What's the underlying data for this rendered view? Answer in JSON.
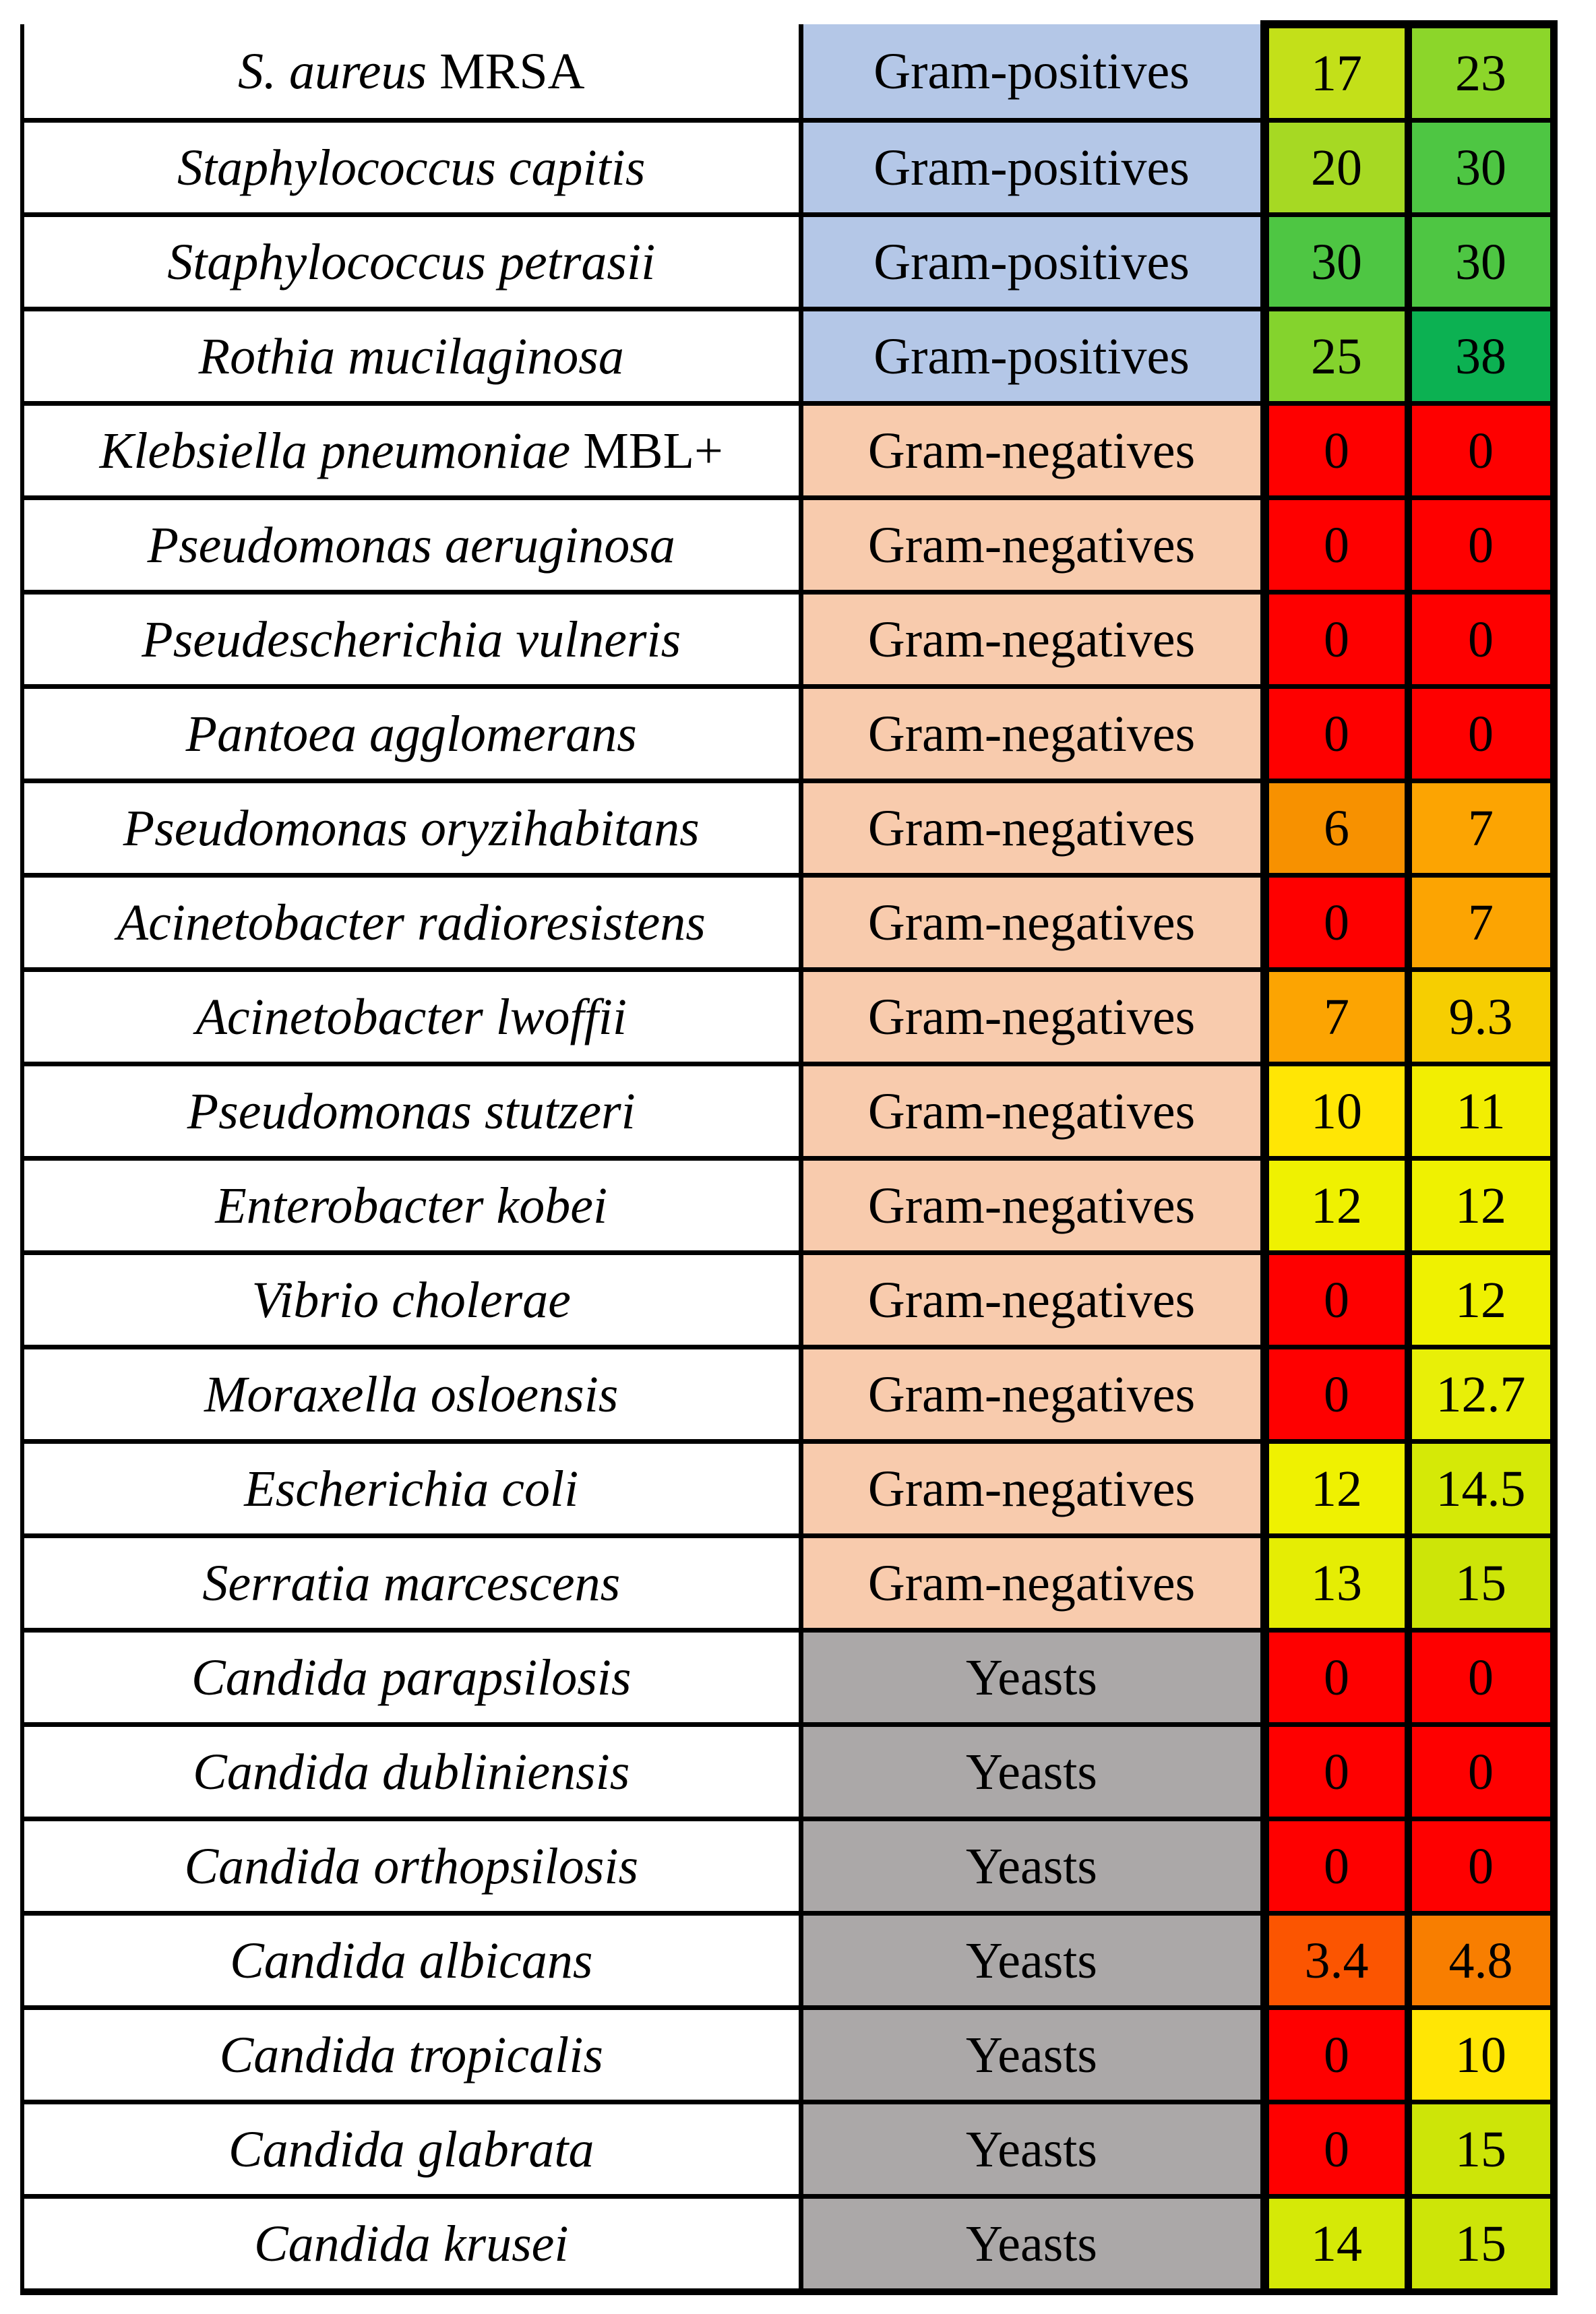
{
  "category_colors": {
    "gram_positives": "#B4C7E7",
    "gram_negatives": "#F8CBAD",
    "yeasts": "#ABA8A8"
  },
  "value_scale_colors": {
    "zero_red": "#FE0000",
    "mid_yellow": "#EFF101",
    "max_green": "#0CB152"
  },
  "rows": [
    {
      "species_italic": "S. aureus",
      "species_roman": " MRSA",
      "category": "Gram-positives",
      "cat_color": "#B4C7E7",
      "v1": "17",
      "v1_color": "#C3E019",
      "v2": "23",
      "v2_color": "#8CD62A"
    },
    {
      "species_italic": "Staphylococcus capitis",
      "species_roman": "",
      "category": "Gram-positives",
      "cat_color": "#B4C7E7",
      "v1": "20",
      "v1_color": "#A6D923",
      "v2": "30",
      "v2_color": "#4EC643"
    },
    {
      "species_italic": "Staphylococcus petrasii",
      "species_roman": "",
      "category": "Gram-positives",
      "cat_color": "#B4C7E7",
      "v1": "30",
      "v1_color": "#4EC643",
      "v2": "30",
      "v2_color": "#4EC643"
    },
    {
      "species_italic": "Rothia mucilaginosa",
      "species_roman": "",
      "category": "Gram-positives",
      "cat_color": "#B4C7E7",
      "v1": "25",
      "v1_color": "#84D32D",
      "v2": "38",
      "v2_color": "#0CB152"
    },
    {
      "species_italic": "Klebsiella pneumoniae",
      "species_roman": " MBL+",
      "category": "Gram-negatives",
      "cat_color": "#F8CBAD",
      "v1": "0",
      "v1_color": "#FE0000",
      "v2": "0",
      "v2_color": "#FE0000"
    },
    {
      "species_italic": "Pseudomonas aeruginosa",
      "species_roman": "",
      "category": "Gram-negatives",
      "cat_color": "#F8CBAD",
      "v1": "0",
      "v1_color": "#FE0000",
      "v2": "0",
      "v2_color": "#FE0000"
    },
    {
      "species_italic": "Pseudescherichia vulneris",
      "species_roman": "",
      "category": "Gram-negatives",
      "cat_color": "#F8CBAD",
      "v1": "0",
      "v1_color": "#FE0000",
      "v2": "0",
      "v2_color": "#FE0000"
    },
    {
      "species_italic": "Pantoea agglomerans",
      "species_roman": "",
      "category": "Gram-negatives",
      "cat_color": "#F8CBAD",
      "v1": "0",
      "v1_color": "#FE0000",
      "v2": "0",
      "v2_color": "#FE0000"
    },
    {
      "species_italic": "Pseudomonas oryzihabitans",
      "species_roman": "",
      "category": "Gram-negatives",
      "cat_color": "#F8CBAD",
      "v1": "6",
      "v1_color": "#F79100",
      "v2": "7",
      "v2_color": "#FCA402"
    },
    {
      "species_italic": "Acinetobacter radioresistens",
      "species_roman": "",
      "category": "Gram-negatives",
      "cat_color": "#F8CBAD",
      "v1": "0",
      "v1_color": "#FE0000",
      "v2": "7",
      "v2_color": "#FCA402"
    },
    {
      "species_italic": "Acinetobacter lwoffii",
      "species_roman": "",
      "category": "Gram-negatives",
      "cat_color": "#F8CBAD",
      "v1": "7",
      "v1_color": "#FCA402",
      "v2": "9.3",
      "v2_color": "#F6CE01"
    },
    {
      "species_italic": "Pseudomonas stutzeri",
      "species_roman": "",
      "category": "Gram-negatives",
      "cat_color": "#F8CBAD",
      "v1": "10",
      "v1_color": "#FFE605",
      "v2": "11",
      "v2_color": "#F2EE02"
    },
    {
      "species_italic": "Enterobacter kobei",
      "species_roman": "",
      "category": "Gram-negatives",
      "cat_color": "#F8CBAD",
      "v1": "12",
      "v1_color": "#EFF101",
      "v2": "12",
      "v2_color": "#EFF101"
    },
    {
      "species_italic": "Vibrio cholerae",
      "species_roman": "",
      "category": "Gram-negatives",
      "cat_color": "#F8CBAD",
      "v1": "0",
      "v1_color": "#FE0000",
      "v2": "12",
      "v2_color": "#EFF101"
    },
    {
      "species_italic": "Moraxella osloensis",
      "species_roman": "",
      "category": "Gram-negatives",
      "cat_color": "#F8CBAD",
      "v1": "0",
      "v1_color": "#FE0000",
      "v2": "12.7",
      "v2_color": "#E8EF08"
    },
    {
      "species_italic": "Escherichia coli",
      "species_roman": "",
      "category": "Gram-negatives",
      "cat_color": "#F8CBAD",
      "v1": "12",
      "v1_color": "#EFF101",
      "v2": "14.5",
      "v2_color": "#D5E907"
    },
    {
      "species_italic": "Serratia marcescens",
      "species_roman": "",
      "category": "Gram-negatives",
      "cat_color": "#F8CBAD",
      "v1": "13",
      "v1_color": "#E5ED04",
      "v2": "15",
      "v2_color": "#CDE508"
    },
    {
      "species_italic": "Candida parapsilosis",
      "species_roman": "",
      "category": "Yeasts",
      "cat_color": "#ABA8A8",
      "v1": "0",
      "v1_color": "#FE0000",
      "v2": "0",
      "v2_color": "#FE0000"
    },
    {
      "species_italic": "Candida dubliniensis",
      "species_roman": "",
      "category": "Yeasts",
      "cat_color": "#ABA8A8",
      "v1": "0",
      "v1_color": "#FE0000",
      "v2": "0",
      "v2_color": "#FE0000"
    },
    {
      "species_italic": "Candida orthopsilosis",
      "species_roman": "",
      "category": "Yeasts",
      "cat_color": "#ABA8A8",
      "v1": "0",
      "v1_color": "#FE0000",
      "v2": "0",
      "v2_color": "#FE0000"
    },
    {
      "species_italic": "Candida albicans",
      "species_roman": "",
      "category": "Yeasts",
      "cat_color": "#ABA8A8",
      "v1": "3.4",
      "v1_color": "#FB5501",
      "v2": "4.8",
      "v2_color": "#F87E00"
    },
    {
      "species_italic": "Candida tropicalis",
      "species_roman": "",
      "category": "Yeasts",
      "cat_color": "#ABA8A8",
      "v1": "0",
      "v1_color": "#FE0000",
      "v2": "10",
      "v2_color": "#FFE605"
    },
    {
      "species_italic": "Candida glabrata",
      "species_roman": "",
      "category": "Yeasts",
      "cat_color": "#ABA8A8",
      "v1": "0",
      "v1_color": "#FE0000",
      "v2": "15",
      "v2_color": "#CDE508"
    },
    {
      "species_italic": "Candida krusei",
      "species_roman": "",
      "category": "Yeasts",
      "cat_color": "#ABA8A8",
      "v1": "14",
      "v1_color": "#D5E907",
      "v2": "15",
      "v2_color": "#CDE508"
    }
  ]
}
